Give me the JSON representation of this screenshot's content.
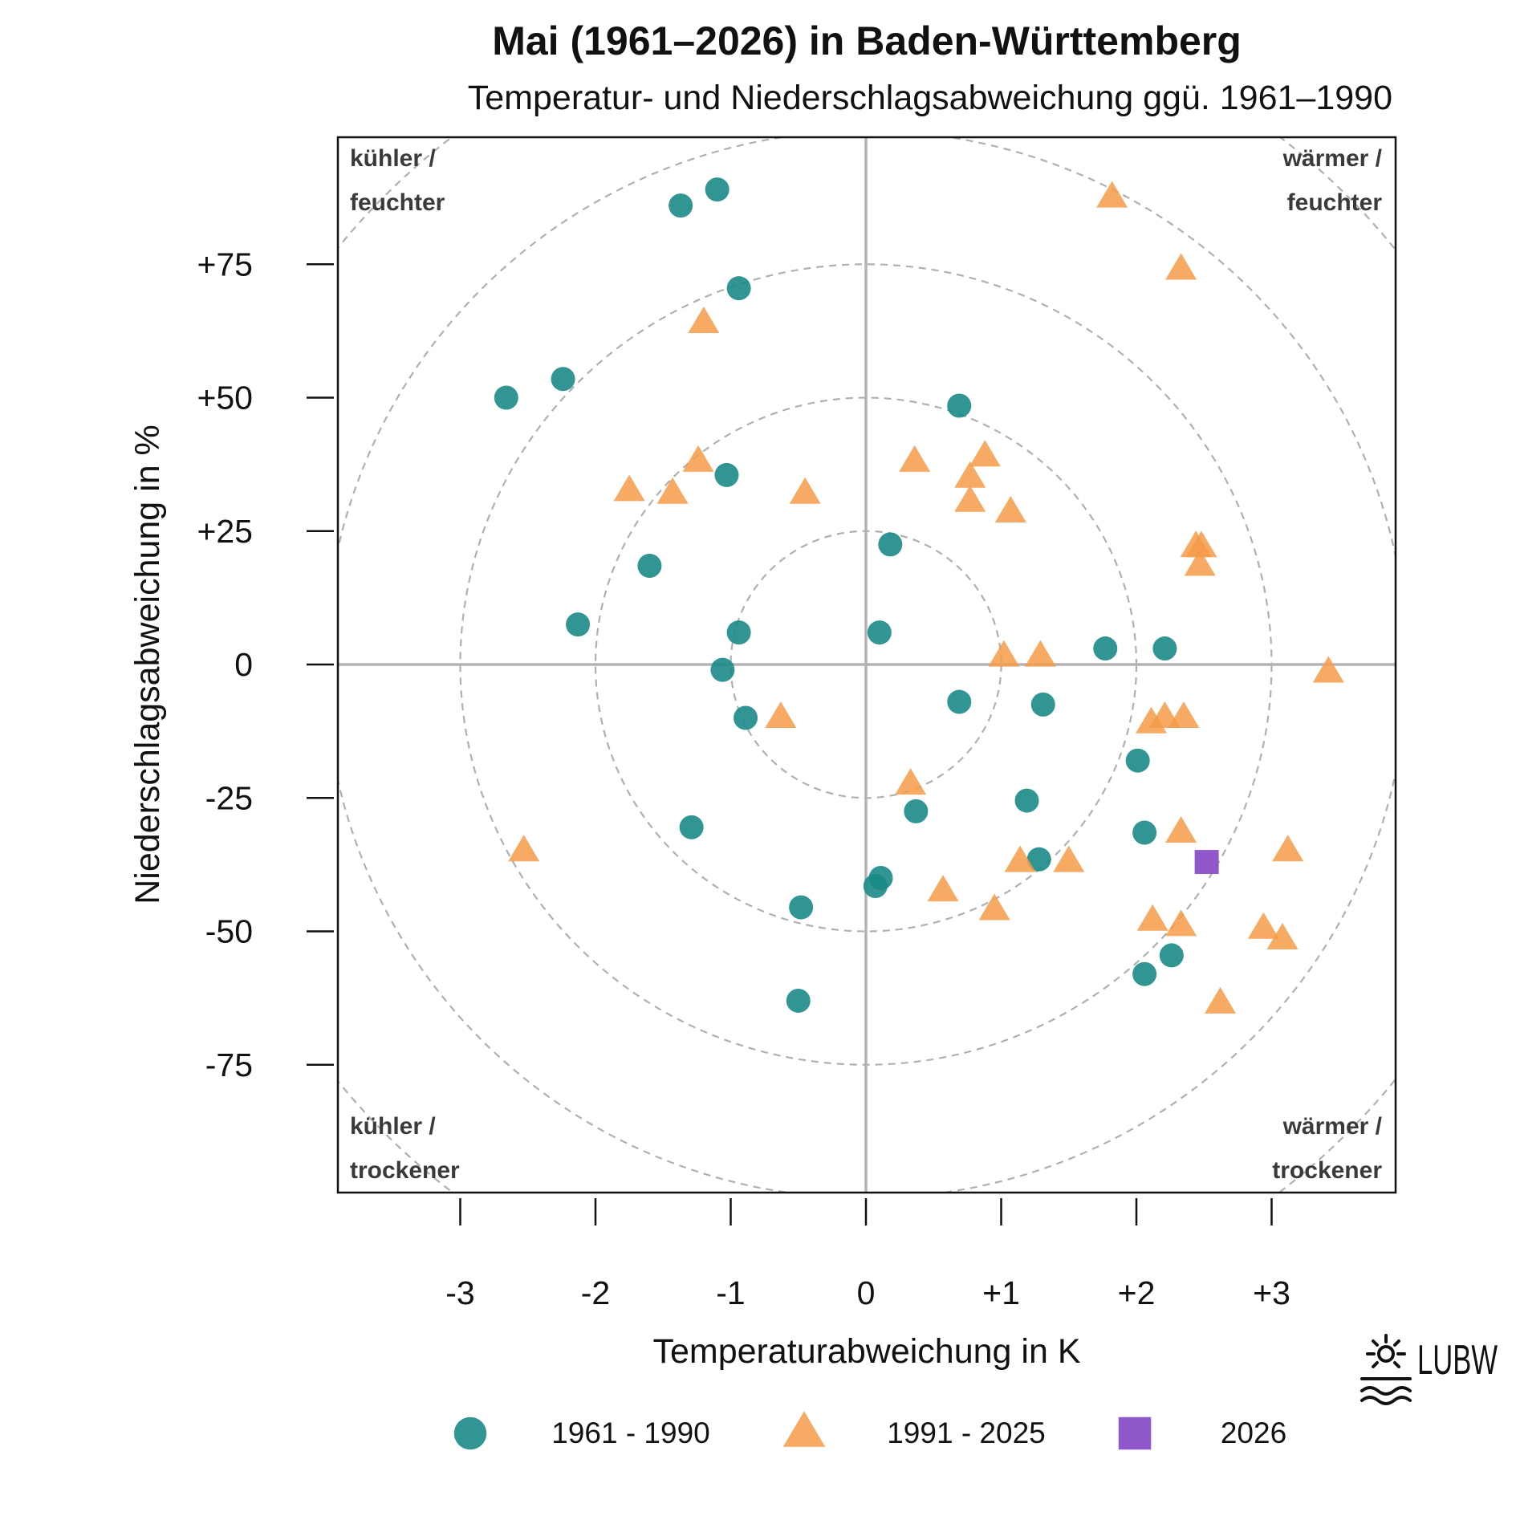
{
  "header": {
    "title": "Mai (1961–2026) in Baden-Württemberg",
    "subtitle": "Temperatur- und Niederschlagsabweichung ggü. 1961–1990"
  },
  "quadrants": {
    "top_left": [
      "kühler /",
      "feuchter"
    ],
    "top_right": [
      "wärmer /",
      "feuchter"
    ],
    "bottom_left": [
      "kühler /",
      "trockener"
    ],
    "bottom_right": [
      "wärmer /",
      "trockener"
    ]
  },
  "logo": {
    "text": "LUBW"
  },
  "colors": {
    "series_1961_1990": "#1a8a87",
    "series_1991_2025": "#f59b48",
    "series_2026": "#8b4fc9",
    "grid": "#b3b3b3",
    "circles": "#b0b0b0"
  },
  "chart_data": {
    "type": "scatter",
    "xlabel": "Temperaturabweichung in K",
    "ylabel": "Niederschlagsabweichung in %",
    "xlim": [
      -3.9,
      3.9
    ],
    "ylim": [
      -97,
      97
    ],
    "x_ticks": [
      -3,
      -2,
      -1,
      0,
      1,
      2,
      3
    ],
    "x_tick_labels": [
      "-3",
      "-2",
      "-1",
      "0",
      "+1",
      "+2",
      "+3"
    ],
    "y_ticks": [
      -75,
      -50,
      -25,
      0,
      25,
      50,
      75
    ],
    "y_tick_labels": [
      "-75",
      "-50",
      "-25",
      "0",
      "+25",
      "+50",
      "+75"
    ],
    "grid": "crosshair at 0/0 with dashed concentric circles",
    "legend_position": "bottom",
    "series": [
      {
        "name": "1961 - 1990",
        "marker": "circle",
        "points": [
          [
            -1.1,
            89
          ],
          [
            -1.37,
            86
          ],
          [
            -0.94,
            70.5
          ],
          [
            -2.24,
            53.5
          ],
          [
            -2.66,
            50
          ],
          [
            0.69,
            48.5
          ],
          [
            -1.03,
            35.5
          ],
          [
            0.18,
            22.5
          ],
          [
            -1.6,
            18.5
          ],
          [
            -2.13,
            7.5
          ],
          [
            -0.94,
            6
          ],
          [
            0.1,
            6
          ],
          [
            -1.06,
            -1
          ],
          [
            1.77,
            3
          ],
          [
            2.21,
            3
          ],
          [
            0.69,
            -7
          ],
          [
            1.31,
            -7.5
          ],
          [
            -0.89,
            -10
          ],
          [
            2.01,
            -18
          ],
          [
            1.19,
            -25.5
          ],
          [
            0.37,
            -27.5
          ],
          [
            -1.29,
            -30.5
          ],
          [
            2.06,
            -31.5
          ],
          [
            1.28,
            -36.5
          ],
          [
            0.11,
            -40
          ],
          [
            0.07,
            -41.5
          ],
          [
            -0.48,
            -45.5
          ],
          [
            2.26,
            -54.5
          ],
          [
            2.06,
            -58
          ],
          [
            -0.5,
            -63
          ]
        ]
      },
      {
        "name": "1991 - 2025",
        "marker": "triangle",
        "points": [
          [
            1.82,
            87.5
          ],
          [
            2.33,
            74
          ],
          [
            -1.2,
            64
          ],
          [
            0.36,
            38
          ],
          [
            0.88,
            39
          ],
          [
            -1.24,
            38
          ],
          [
            0.77,
            35
          ],
          [
            -1.75,
            32.5
          ],
          [
            -1.43,
            32
          ],
          [
            -0.45,
            32
          ],
          [
            0.77,
            30.5
          ],
          [
            1.07,
            28.5
          ],
          [
            2.44,
            22
          ],
          [
            2.48,
            22
          ],
          [
            2.47,
            18.5
          ],
          [
            1.02,
            1.5
          ],
          [
            1.29,
            1.5
          ],
          [
            3.42,
            -1.5
          ],
          [
            -0.63,
            -10
          ],
          [
            2.11,
            -11
          ],
          [
            2.21,
            -10
          ],
          [
            2.35,
            -10
          ],
          [
            0.33,
            -22.5
          ],
          [
            2.33,
            -31.5
          ],
          [
            -2.53,
            -35
          ],
          [
            3.12,
            -35
          ],
          [
            1.14,
            -37
          ],
          [
            1.5,
            -37
          ],
          [
            0.57,
            -42.5
          ],
          [
            0.95,
            -46
          ],
          [
            2.12,
            -48
          ],
          [
            2.33,
            -49
          ],
          [
            2.94,
            -49.5
          ],
          [
            3.08,
            -51.5
          ],
          [
            2.62,
            -63.5
          ]
        ]
      },
      {
        "name": "2026",
        "marker": "square",
        "points": [
          [
            2.52,
            -37
          ]
        ]
      }
    ]
  }
}
